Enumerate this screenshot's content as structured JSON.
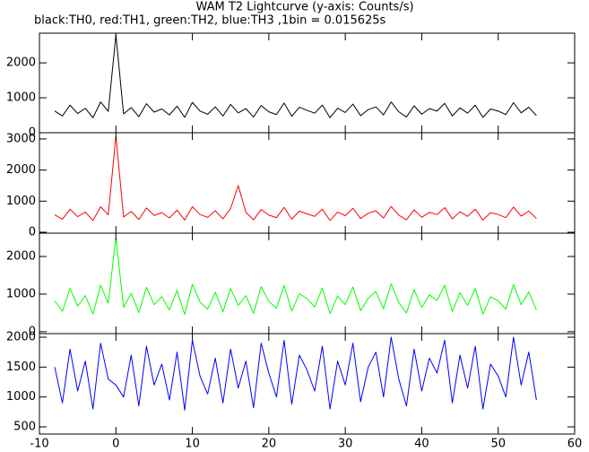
{
  "chart_data": [
    {
      "type": "line",
      "title": "WAM T2 Lightcurve (y-axis: Counts/s)",
      "subtitle": "black:TH0, red:TH1, green:TH2, blue:TH3 ,1bin = 0.015625s",
      "x": [
        -8,
        -7,
        -6,
        -5,
        -4,
        -3,
        -2,
        -1,
        0,
        1,
        2,
        3,
        4,
        5,
        6,
        7,
        8,
        9,
        10,
        11,
        12,
        13,
        14,
        15,
        16,
        17,
        18,
        19,
        20,
        21,
        22,
        23,
        24,
        25,
        26,
        27,
        28,
        29,
        30,
        31,
        32,
        33,
        34,
        35,
        36,
        37,
        38,
        39,
        40,
        41,
        42,
        43,
        44,
        45,
        46,
        47,
        48,
        49,
        50,
        51,
        52,
        53,
        54,
        55
      ],
      "series": [
        {
          "name": "TH0",
          "color": "#000000",
          "values": [
            620,
            480,
            790,
            550,
            700,
            430,
            880,
            610,
            2800,
            540,
            720,
            460,
            830,
            590,
            680,
            510,
            760,
            440,
            870,
            620,
            530,
            740,
            480,
            810,
            570,
            690,
            450,
            780,
            600,
            520,
            850,
            470,
            730,
            640,
            560,
            790,
            430,
            700,
            580,
            820,
            490,
            660,
            740,
            510,
            880,
            600,
            450,
            770,
            530,
            690,
            620,
            840,
            480,
            710,
            560,
            790,
            440,
            680,
            620,
            520,
            860,
            570,
            730,
            490
          ]
        }
      ],
      "xlim": [
        -10,
        60
      ],
      "ylim": [
        0,
        2850
      ],
      "yticks": [
        0,
        1000,
        2000
      ]
    },
    {
      "type": "line",
      "x": [
        -8,
        -7,
        -6,
        -5,
        -4,
        -3,
        -2,
        -1,
        0,
        1,
        2,
        3,
        4,
        5,
        6,
        7,
        8,
        9,
        10,
        11,
        12,
        13,
        14,
        15,
        16,
        17,
        18,
        19,
        20,
        21,
        22,
        23,
        24,
        25,
        26,
        27,
        28,
        29,
        30,
        31,
        32,
        33,
        34,
        35,
        36,
        37,
        38,
        39,
        40,
        41,
        42,
        43,
        44,
        45,
        46,
        47,
        48,
        49,
        50,
        51,
        52,
        53,
        54,
        55
      ],
      "series": [
        {
          "name": "TH1",
          "color": "#ff0000",
          "values": [
            560,
            420,
            740,
            500,
            650,
            380,
            820,
            560,
            3100,
            490,
            670,
            410,
            780,
            540,
            630,
            460,
            710,
            390,
            820,
            570,
            480,
            690,
            430,
            760,
            1500,
            640,
            400,
            730,
            550,
            470,
            800,
            420,
            680,
            590,
            510,
            740,
            380,
            650,
            530,
            770,
            440,
            610,
            690,
            460,
            830,
            550,
            400,
            720,
            480,
            640,
            570,
            790,
            430,
            660,
            510,
            740,
            390,
            630,
            570,
            470,
            810,
            520,
            680,
            440
          ]
        }
      ],
      "xlim": [
        -10,
        60
      ],
      "ylim": [
        -30,
        3200
      ],
      "yticks": [
        0,
        1000,
        2000,
        3000
      ]
    },
    {
      "type": "line",
      "x": [
        -8,
        -7,
        -6,
        -5,
        -4,
        -3,
        -2,
        -1,
        0,
        1,
        2,
        3,
        4,
        5,
        6,
        7,
        8,
        9,
        10,
        11,
        12,
        13,
        14,
        15,
        16,
        17,
        18,
        19,
        20,
        21,
        22,
        23,
        24,
        25,
        26,
        27,
        28,
        29,
        30,
        31,
        32,
        33,
        34,
        35,
        36,
        37,
        38,
        39,
        40,
        41,
        42,
        43,
        44,
        45,
        46,
        47,
        48,
        49,
        50,
        51,
        52,
        53,
        54,
        55
      ],
      "series": [
        {
          "name": "TH2",
          "color": "#00ff00",
          "values": [
            820,
            540,
            1150,
            680,
            960,
            470,
            1240,
            760,
            2500,
            650,
            1020,
            510,
            1180,
            720,
            930,
            580,
            1100,
            460,
            1260,
            790,
            600,
            1050,
            530,
            1150,
            700,
            960,
            490,
            1200,
            810,
            620,
            1230,
            550,
            1010,
            880,
            660,
            1160,
            480,
            950,
            720,
            1190,
            560,
            890,
            1070,
            610,
            1280,
            770,
            500,
            1120,
            650,
            980,
            830,
            1240,
            540,
            1040,
            700,
            1150,
            470,
            930,
            820,
            600,
            1260,
            720,
            1060,
            580
          ]
        }
      ],
      "xlim": [
        -10,
        60
      ],
      "ylim": [
        -50,
        2620
      ],
      "yticks": [
        0,
        1000,
        2000
      ]
    },
    {
      "type": "line",
      "x": [
        -8,
        -7,
        -6,
        -5,
        -4,
        -3,
        -2,
        -1,
        0,
        1,
        2,
        3,
        4,
        5,
        6,
        7,
        8,
        9,
        10,
        11,
        12,
        13,
        14,
        15,
        16,
        17,
        18,
        19,
        20,
        21,
        22,
        23,
        24,
        25,
        26,
        27,
        28,
        29,
        30,
        31,
        32,
        33,
        34,
        35,
        36,
        37,
        38,
        39,
        40,
        41,
        42,
        43,
        44,
        45,
        46,
        47,
        48,
        49,
        50,
        51,
        52,
        53,
        54,
        55
      ],
      "series": [
        {
          "name": "TH3",
          "color": "#0000ff",
          "values": [
            1500,
            900,
            1800,
            1100,
            1600,
            800,
            1900,
            1300,
            1200,
            1000,
            1700,
            850,
            1850,
            1200,
            1550,
            950,
            1750,
            780,
            1950,
            1350,
            1050,
            1650,
            900,
            1800,
            1150,
            1600,
            820,
            1900,
            1400,
            1000,
            1950,
            880,
            1700,
            1450,
            1100,
            1850,
            800,
            1600,
            1200,
            1900,
            920,
            1500,
            1750,
            1000,
            2000,
            1300,
            850,
            1800,
            1100,
            1650,
            1400,
            1950,
            900,
            1700,
            1150,
            1850,
            800,
            1550,
            1350,
            1000,
            2000,
            1200,
            1750,
            950
          ]
        }
      ],
      "xlim": [
        -10,
        60
      ],
      "ylim": [
        380,
        2060
      ],
      "yticks": [
        500,
        1000,
        1500,
        2000
      ],
      "xticks": [
        -10,
        0,
        10,
        20,
        30,
        40,
        50,
        60
      ]
    }
  ]
}
